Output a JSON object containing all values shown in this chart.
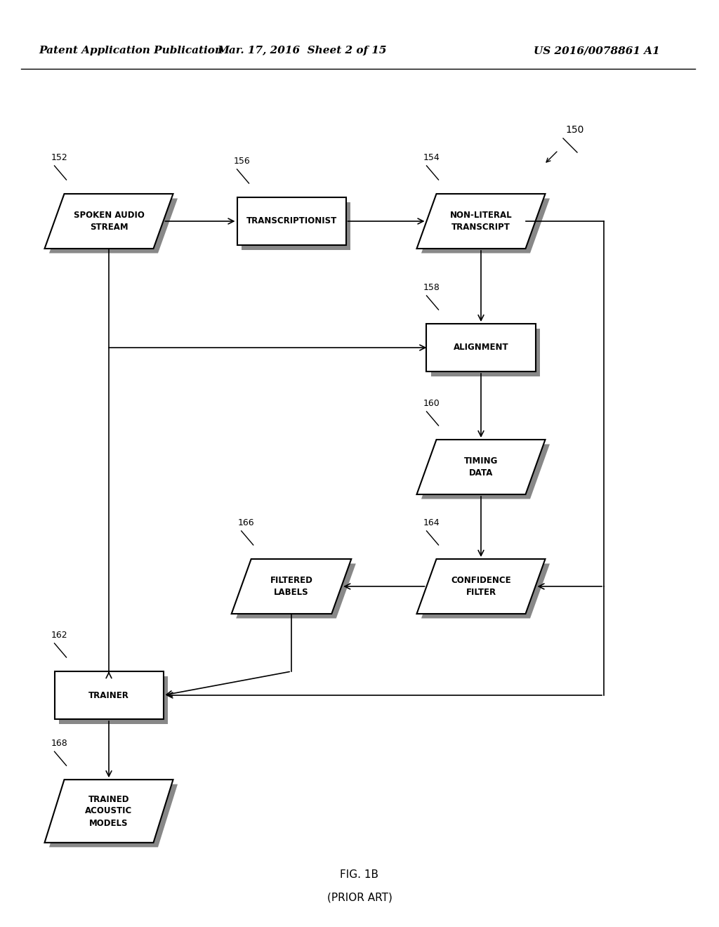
{
  "bg_color": "#ffffff",
  "header_left": "Patent Application Publication",
  "header_mid": "Mar. 17, 2016  Sheet 2 of 15",
  "header_right": "US 2016/0078861 A1",
  "fig_label": "FIG. 1B",
  "fig_sublabel": "(PRIOR ART)",
  "diagram_ref": "150"
}
